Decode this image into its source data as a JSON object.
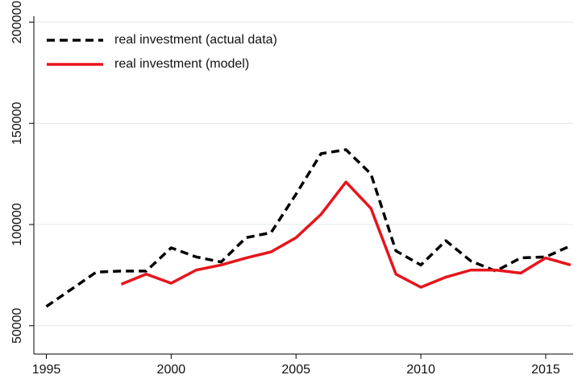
{
  "chart_data": {
    "type": "line",
    "x": [
      1995,
      1996,
      1997,
      1998,
      1999,
      2000,
      2001,
      2002,
      2003,
      2004,
      2005,
      2006,
      2007,
      2008,
      2009,
      2010,
      2011,
      2012,
      2013,
      2014,
      2015,
      2016
    ],
    "series": [
      {
        "name": "real investment (actual data)",
        "color": "#000000",
        "dash": true,
        "values": [
          59500,
          68000,
          76500,
          77000,
          77000,
          88500,
          84000,
          81500,
          93500,
          96000,
          115000,
          135000,
          137000,
          125000,
          87000,
          80000,
          92000,
          82000,
          77000,
          83500,
          84000,
          89500
        ]
      },
      {
        "name": "real investment (model)",
        "color": "#e8141c",
        "dash": false,
        "values": [
          null,
          null,
          null,
          70500,
          75500,
          71000,
          77500,
          80000,
          83500,
          86500,
          93500,
          105000,
          121000,
          108000,
          75500,
          69000,
          74000,
          77500,
          77500,
          76000,
          83500,
          80000
        ]
      }
    ],
    "xlim": [
      1994.5,
      2016.1
    ],
    "xticks": [
      1995,
      2000,
      2005,
      2010,
      2015
    ],
    "ylim": [
      36000,
      203000
    ],
    "yticks": [
      50000,
      100000,
      150000,
      200000
    ],
    "grid": true,
    "legend": "top-left"
  }
}
